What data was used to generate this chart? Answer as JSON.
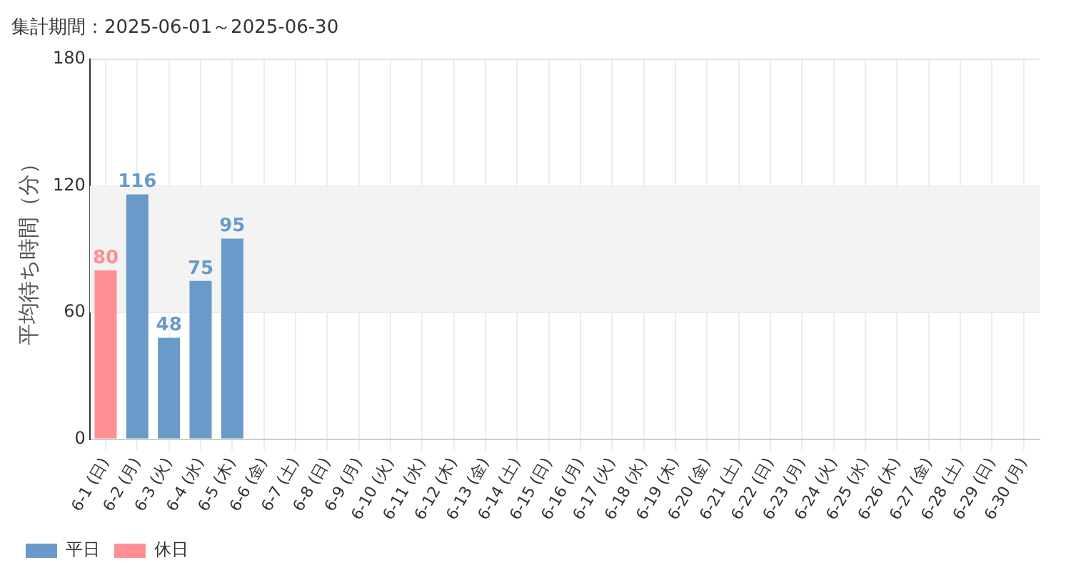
{
  "chart_data": {
    "type": "bar",
    "title": "集計期間：2025-06-01～2025-06-30",
    "ylabel": "平均待ち時間（分）",
    "categories": [
      "6-1 (日)",
      "6-2 (月)",
      "6-3 (火)",
      "6-4 (水)",
      "6-5 (木)",
      "6-6 (金)",
      "6-7 (土)",
      "6-8 (日)",
      "6-9 (月)",
      "6-10 (火)",
      "6-11 (水)",
      "6-12 (木)",
      "6-13 (金)",
      "6-14 (土)",
      "6-15 (日)",
      "6-16 (月)",
      "6-17 (火)",
      "6-18 (水)",
      "6-19 (木)",
      "6-20 (金)",
      "6-21 (土)",
      "6-22 (日)",
      "6-23 (月)",
      "6-24 (火)",
      "6-25 (水)",
      "6-26 (木)",
      "6-27 (金)",
      "6-28 (土)",
      "6-29 (日)",
      "6-30 (月)"
    ],
    "series": [
      {
        "name": "平日",
        "color": "#6a9ac9",
        "values": [
          null,
          116,
          48,
          75,
          95,
          null,
          null,
          null,
          null,
          null,
          null,
          null,
          null,
          null,
          null,
          null,
          null,
          null,
          null,
          null,
          null,
          null,
          null,
          null,
          null,
          null,
          null,
          null,
          null,
          null
        ]
      },
      {
        "name": "休日",
        "color": "#ff8f94",
        "values": [
          80,
          null,
          null,
          null,
          null,
          null,
          null,
          null,
          null,
          null,
          null,
          null,
          null,
          null,
          null,
          null,
          null,
          null,
          null,
          null,
          null,
          null,
          null,
          null,
          null,
          null,
          null,
          null,
          null,
          null
        ]
      }
    ],
    "ylim": [
      0,
      180
    ],
    "yticks": [
      0,
      60,
      120,
      180
    ],
    "bands": [
      {
        "axis": "y",
        "from": 60,
        "to": 120,
        "color": "#f3f3f3"
      }
    ],
    "grid": true,
    "legend": "bottom left",
    "data_labels": true
  }
}
